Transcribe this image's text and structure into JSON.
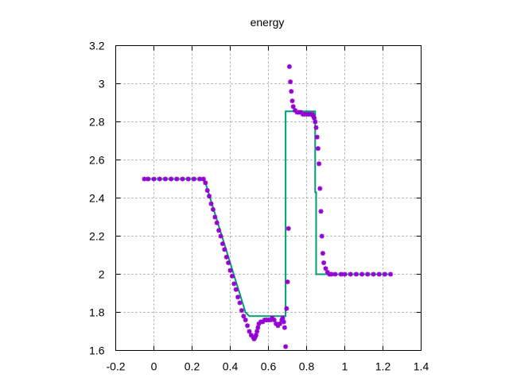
{
  "chart_data": {
    "type": "scatter",
    "title": "energy",
    "xlabel": "",
    "ylabel": "",
    "xlim": [
      -0.2,
      1.4
    ],
    "ylim": [
      1.6,
      3.2
    ],
    "xticks": [
      -0.2,
      0,
      0.2,
      0.4,
      0.6,
      0.8,
      1,
      1.2,
      1.4
    ],
    "xtick_labels": [
      "-0.2",
      "0",
      "0.2",
      "0.4",
      "0.6",
      "0.8",
      "1",
      "1.2",
      "1.4"
    ],
    "yticks": [
      1.6,
      1.8,
      2,
      2.2,
      2.4,
      2.6,
      2.8,
      3,
      3.2
    ],
    "ytick_labels": [
      "1.6",
      "1.8",
      "2",
      "2.2",
      "2.4",
      "2.6",
      "2.8",
      "3",
      "3.2"
    ],
    "grid": true,
    "legend": "none",
    "series": [
      {
        "kind": "line",
        "color": "#009e73",
        "x": [
          -0.05,
          0.25,
          0.27,
          0.48,
          0.5,
          0.69,
          0.69,
          0.845,
          0.845,
          0.85,
          0.85,
          1.24
        ],
        "y": [
          2.5,
          2.5,
          2.48,
          1.8,
          1.78,
          1.78,
          2.855,
          2.855,
          2.43,
          2.43,
          2.0,
          2.0
        ]
      },
      {
        "kind": "points",
        "color": "#9400d3",
        "x": [
          -0.05,
          -0.03,
          0.0,
          0.03,
          0.06,
          0.09,
          0.12,
          0.15,
          0.18,
          0.21,
          0.24,
          0.26,
          0.27,
          0.28,
          0.29,
          0.3,
          0.31,
          0.32,
          0.33,
          0.34,
          0.35,
          0.36,
          0.37,
          0.38,
          0.39,
          0.4,
          0.41,
          0.42,
          0.43,
          0.44,
          0.45,
          0.46,
          0.47,
          0.48,
          0.49,
          0.5,
          0.51,
          0.52,
          0.525,
          0.53,
          0.535,
          0.54,
          0.545,
          0.55,
          0.56,
          0.57,
          0.58,
          0.59,
          0.6,
          0.61,
          0.62,
          0.63,
          0.64,
          0.65,
          0.66,
          0.67,
          0.675,
          0.68,
          0.685,
          0.69,
          0.695,
          0.7,
          0.705,
          0.71,
          0.715,
          0.72,
          0.725,
          0.73,
          0.74,
          0.75,
          0.76,
          0.77,
          0.78,
          0.79,
          0.8,
          0.81,
          0.82,
          0.83,
          0.835,
          0.84,
          0.845,
          0.85,
          0.855,
          0.86,
          0.865,
          0.87,
          0.875,
          0.88,
          0.885,
          0.89,
          0.9,
          0.91,
          0.92,
          0.93,
          0.95,
          0.98,
          1.0,
          1.03,
          1.06,
          1.09,
          1.12,
          1.15,
          1.18,
          1.21,
          1.24
        ],
        "y": [
          2.5,
          2.5,
          2.5,
          2.5,
          2.5,
          2.5,
          2.5,
          2.5,
          2.5,
          2.5,
          2.5,
          2.5,
          2.48,
          2.44,
          2.41,
          2.37,
          2.34,
          2.3,
          2.27,
          2.23,
          2.2,
          2.16,
          2.13,
          2.09,
          2.06,
          2.02,
          1.99,
          1.95,
          1.92,
          1.88,
          1.85,
          1.81,
          1.78,
          1.76,
          1.73,
          1.7,
          1.68,
          1.67,
          1.66,
          1.67,
          1.68,
          1.7,
          1.72,
          1.74,
          1.75,
          1.75,
          1.76,
          1.76,
          1.76,
          1.76,
          1.77,
          1.76,
          1.74,
          1.73,
          1.74,
          1.76,
          1.77,
          1.75,
          1.72,
          1.62,
          1.82,
          1.96,
          2.24,
          3.09,
          3.01,
          2.96,
          2.91,
          2.88,
          2.86,
          2.85,
          2.85,
          2.85,
          2.84,
          2.84,
          2.84,
          2.84,
          2.84,
          2.84,
          2.83,
          2.82,
          2.8,
          2.77,
          2.72,
          2.66,
          2.58,
          2.45,
          2.33,
          2.2,
          2.11,
          2.06,
          2.03,
          2.01,
          2.0,
          2.0,
          2.0,
          2.0,
          2.0,
          2.0,
          2.0,
          2.0,
          2.0,
          2.0,
          2.0,
          2.0,
          2.0
        ]
      }
    ]
  }
}
